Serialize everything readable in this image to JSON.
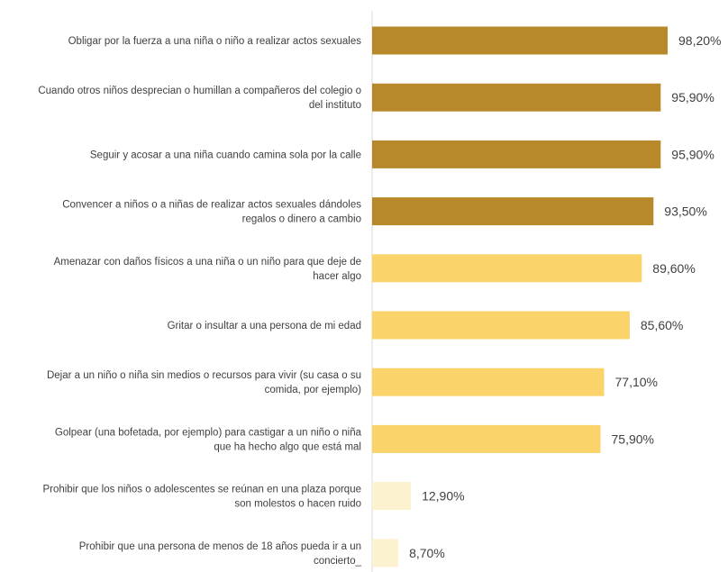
{
  "chart_data": {
    "type": "bar",
    "orientation": "horizontal",
    "categories": [
      "Obligar por la fuerza a una niña o niño a realizar actos sexuales",
      "Cuando otros niños desprecian o humillan a compañeros del colegio o del instituto",
      "Seguir y acosar a una niña cuando camina sola por la calle",
      "Convencer a niños o a niñas de realizar actos sexuales dándoles regalos o dinero a cambio",
      "Amenazar con daños físicos a una niña o un niño para que deje de hacer algo",
      "Gritar o insultar a una persona de mi edad",
      "Dejar a un niño o niña sin medios o recursos para vivir (su casa o su comida, por ejemplo)",
      "Golpear (una bofetada, por ejemplo) para castigar a un niño o niña que ha hecho algo que está mal",
      "Prohibir que los niños o adolescentes se reúnan en una plaza porque son molestos o hacen ruido",
      "Prohibir que una persona de menos de 18 años pueda ir a un concierto_"
    ],
    "category_lines": [
      [
        "Obligar por la fuerza a una niña o niño a realizar actos sexuales"
      ],
      [
        "Cuando otros niños desprecian o humillan a compañeros del colegio o",
        "del instituto"
      ],
      [
        "Seguir y acosar a una niña cuando camina sola por la calle"
      ],
      [
        "Convencer a niños o a niñas de realizar actos sexuales dándoles",
        "regalos o dinero a cambio"
      ],
      [
        "Amenazar con daños físicos a una niña o un niño para que deje de",
        "hacer algo"
      ],
      [
        "Gritar o insultar a una persona de mi edad"
      ],
      [
        "Dejar a un niño o niña sin medios o recursos para vivir (su casa o su",
        "comida, por ejemplo)"
      ],
      [
        "Golpear (una bofetada, por ejemplo) para castigar a un niño o niña",
        "que ha hecho algo que está mal"
      ],
      [
        "Prohibir que los niños o adolescentes se reúnan en una plaza porque",
        "son molestos o hacen ruido"
      ],
      [
        "Prohibir que una persona de menos de 18 años pueda ir a un",
        "concierto_"
      ]
    ],
    "values": [
      98.2,
      95.9,
      95.9,
      93.5,
      89.6,
      85.6,
      77.1,
      75.9,
      12.9,
      8.7
    ],
    "value_labels": [
      "98,20%",
      "95,90%",
      "95,90%",
      "93,50%",
      "89,60%",
      "85,60%",
      "77,10%",
      "75,90%",
      "12,90%",
      "8,70%"
    ],
    "bar_colors": [
      "#B8892A",
      "#B8892A",
      "#B8892A",
      "#B8892A",
      "#FAD46B",
      "#FAD46B",
      "#FAD46B",
      "#FAD46B",
      "#FDF2CF",
      "#FDF2CF"
    ],
    "xlim": [
      0,
      100
    ],
    "grid": false,
    "legend": "none",
    "title": "",
    "xlabel": "",
    "ylabel": ""
  }
}
